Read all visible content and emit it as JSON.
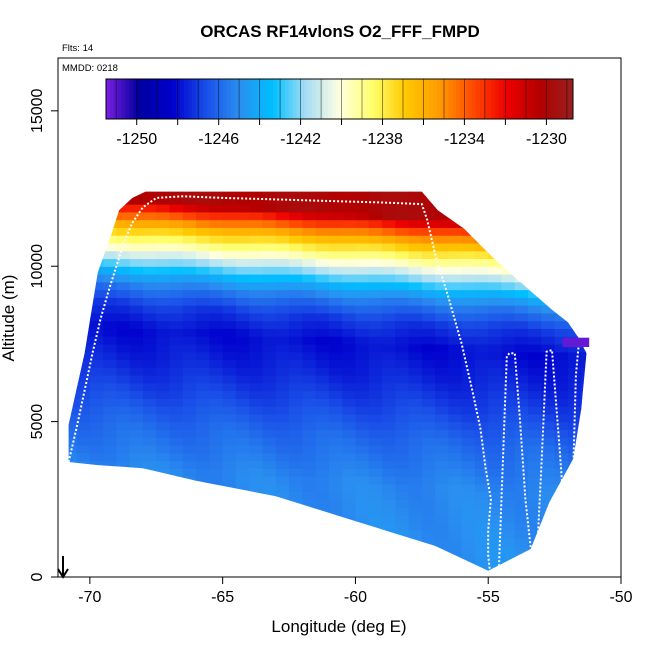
{
  "chart_data": {
    "type": "heatmap",
    "title": "ORCAS RF14vlonS O2_FFF_FMPD",
    "subtitle": "Flts: 14",
    "note": "MMDD: 0218",
    "xlabel": "Longitude (deg E)",
    "ylabel": "Altitude (m)",
    "xlim": [
      -71.2,
      -50.0
    ],
    "ylim": [
      0,
      16700
    ],
    "xticks": [
      -70,
      -65,
      -60,
      -55,
      -50
    ],
    "xtick_labels": [
      "-70",
      "-65",
      "-60",
      "-55",
      "-50"
    ],
    "yticks": [
      0,
      5000,
      10000,
      15000
    ],
    "ytick_labels": [
      "0",
      "5000",
      "10000",
      "15000"
    ],
    "colorbar": {
      "min": -1251.5,
      "max": -1228.7,
      "ticks": [
        -1250,
        -1246,
        -1242,
        -1238,
        -1234,
        -1230
      ],
      "tick_labels": [
        "-1250",
        "-1246",
        "-1242",
        "-1238",
        "-1234",
        "-1230"
      ],
      "colors": [
        "#7b1fe0",
        "#0000a0",
        "#0000cd",
        "#1a4fe8",
        "#2a8ff0",
        "#00bfff",
        "#a8ddf5",
        "#ffffe0",
        "#ffff6b",
        "#ffc800",
        "#ff9a00",
        "#ff4a00",
        "#ee0000",
        "#b30000",
        "#9a2020"
      ]
    },
    "field_boundary": {
      "x": [
        -70.8,
        -70.8,
        -70.2,
        -69.7,
        -69.2,
        -68.9,
        -68.4,
        -67.9,
        -57.5,
        -56.9,
        -55.9,
        -55.2,
        -54.6,
        -53.4,
        -52.6,
        -52.0,
        -51.6,
        -51.3,
        -51.5,
        -51.8,
        -52.7,
        -53.4,
        -55.0,
        -57.0,
        -60.0,
        -63.0,
        -66.0,
        -68.0,
        -69.7
      ],
      "y": [
        3700,
        4900,
        7200,
        9800,
        11000,
        11800,
        12200,
        12400,
        12400,
        11800,
        11200,
        10600,
        10100,
        9200,
        8600,
        8200,
        7700,
        7200,
        5400,
        3800,
        2400,
        900,
        200,
        1000,
        1800,
        2600,
        3100,
        3500,
        3600
      ]
    },
    "field_layers": [
      {
        "alt": 12150,
        "value": -1230.0
      },
      {
        "alt": 11900,
        "value": -1232.5
      },
      {
        "alt": 11600,
        "value": -1234.5
      },
      {
        "alt": 11300,
        "value": -1236.5
      },
      {
        "alt": 11000,
        "value": -1238.0
      },
      {
        "alt": 10700,
        "value": -1239.5
      },
      {
        "alt": 10400,
        "value": -1241.0
      },
      {
        "alt": 10100,
        "value": -1242.5
      },
      {
        "alt": 9800,
        "value": -1244.0
      },
      {
        "alt": 9400,
        "value": -1245.5
      },
      {
        "alt": 8800,
        "value": -1247.0
      },
      {
        "alt": 8000,
        "value": -1248.0
      },
      {
        "alt": 7000,
        "value": -1247.5
      },
      {
        "alt": 6000,
        "value": -1246.8
      },
      {
        "alt": 5000,
        "value": -1246.0
      },
      {
        "alt": 3500,
        "value": -1245.2
      },
      {
        "alt": 0,
        "value": -1244.8
      }
    ],
    "flight_track": {
      "lon": [
        -70.8,
        -70.5,
        -70.2,
        -69.9,
        -69.6,
        -69.3,
        -69.0,
        -68.7,
        -68.4,
        -68.0,
        -67.5,
        -66.5,
        -65.0,
        -63.0,
        -61.0,
        -59.0,
        -57.5,
        -57.3,
        -57.0,
        -56.5,
        -56.0,
        -55.6,
        -55.3,
        -55.1,
        -54.9,
        -55.0,
        -55.0,
        -54.95,
        -54.8,
        -54.6,
        -54.3,
        -54.2,
        -54.0,
        -53.8,
        -53.6,
        -53.3,
        -53.2,
        -53.0,
        -52.8,
        -52.6,
        -52.3,
        -52.0,
        -51.9,
        -51.7,
        -51.6
      ],
      "alt": [
        3700,
        4800,
        6000,
        7200,
        8300,
        9200,
        10000,
        10800,
        11400,
        11900,
        12200,
        12250,
        12200,
        12150,
        12100,
        12050,
        12000,
        11500,
        10400,
        9000,
        7500,
        6000,
        4800,
        3500,
        2500,
        1500,
        700,
        300,
        200,
        200,
        7100,
        7200,
        7200,
        5000,
        2500,
        150,
        100,
        3500,
        7250,
        7300,
        4000,
        400,
        300,
        6500,
        7400
      ]
    }
  },
  "colors": {
    "flight_track": "#ffffff",
    "axis": "#000000",
    "arrow": "#000000"
  }
}
